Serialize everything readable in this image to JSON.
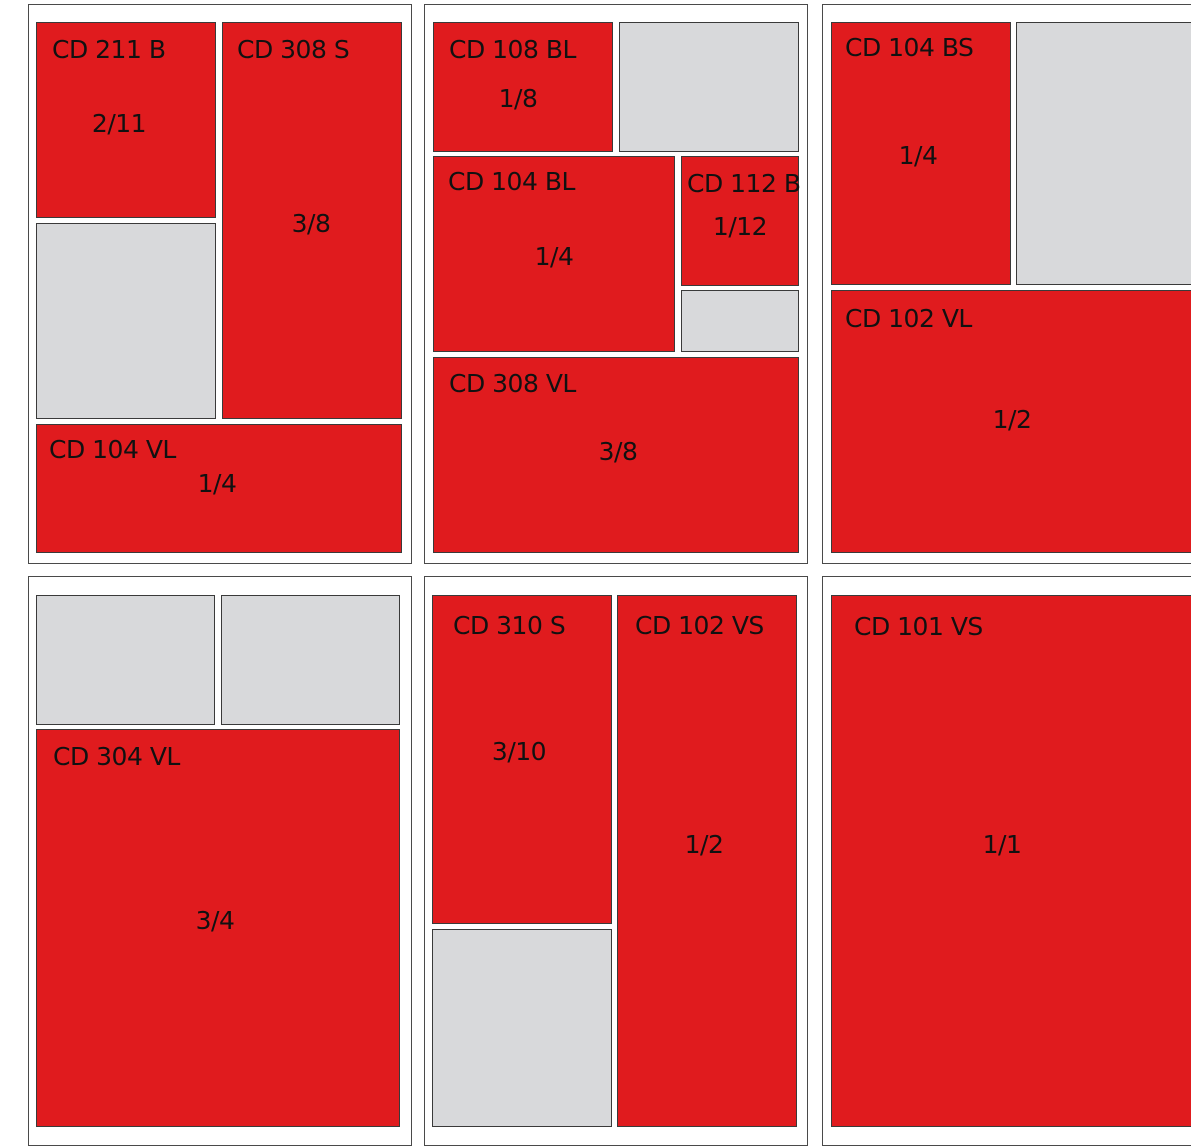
{
  "panels": [
    {
      "cells": [
        {
          "type": "red",
          "label": "CD 211 B",
          "fraction": "2/11"
        },
        {
          "type": "red",
          "label": "CD 308 S",
          "fraction": "3/8"
        },
        {
          "type": "grey"
        },
        {
          "type": "red",
          "label": "CD 104 VL",
          "fraction": "1/4"
        }
      ]
    },
    {
      "cells": [
        {
          "type": "red",
          "label": "CD 108 BL",
          "fraction": "1/8"
        },
        {
          "type": "grey"
        },
        {
          "type": "red",
          "label": "CD 104 BL",
          "fraction": "1/4"
        },
        {
          "type": "red",
          "label": "CD 112 B",
          "fraction": "1/12"
        },
        {
          "type": "grey"
        },
        {
          "type": "red",
          "label": "CD 308 VL",
          "fraction": "3/8"
        }
      ]
    },
    {
      "cells": [
        {
          "type": "red",
          "label": "CD 104 BS",
          "fraction": "1/4"
        },
        {
          "type": "grey"
        },
        {
          "type": "red",
          "label": "CD 102 VL",
          "fraction": "1/2"
        }
      ]
    },
    {
      "cells": [
        {
          "type": "grey"
        },
        {
          "type": "grey"
        },
        {
          "type": "red",
          "label": "CD 304 VL",
          "fraction": "3/4"
        }
      ]
    },
    {
      "cells": [
        {
          "type": "red",
          "label": "CD 310 S",
          "fraction": "3/10"
        },
        {
          "type": "red",
          "label": "CD 102 VS",
          "fraction": "1/2"
        },
        {
          "type": "grey"
        }
      ]
    },
    {
      "cells": [
        {
          "type": "red",
          "label": "CD 101 VS",
          "fraction": "1/1"
        }
      ]
    }
  ],
  "colors": {
    "red": "#e01b1e",
    "grey": "#d8d9db"
  }
}
